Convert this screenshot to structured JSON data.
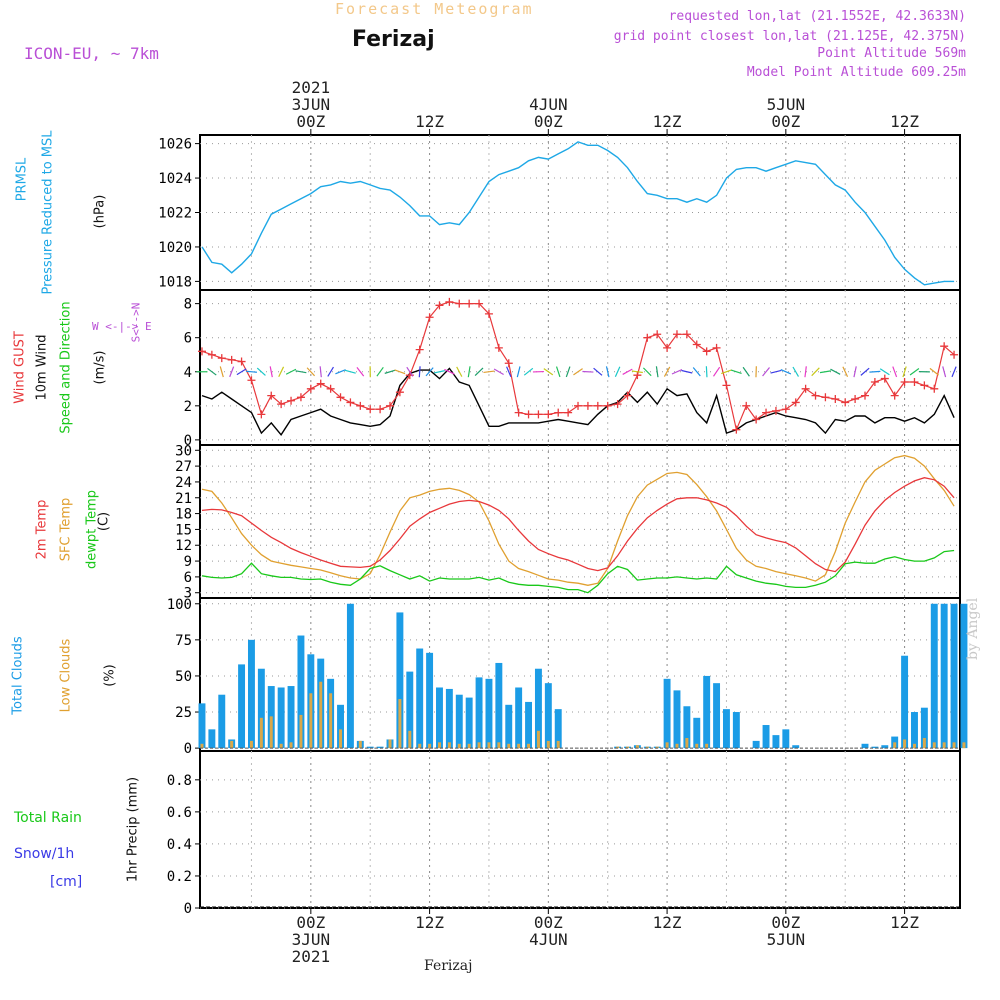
{
  "header": {
    "title": "Forecast Meteogram",
    "location": "Ferizaj",
    "model": "ICON-EU, ~ 7km",
    "requested": "requested lon,lat (21.1552E, 42.3633N)",
    "grid": "grid point closest lon,lat (21.125E, 42.375N)",
    "point_alt": "Point Altitude 569m",
    "model_alt": "Model Point Altitude 609.25m"
  },
  "footer_label": "Ferizaj",
  "byline": "by Angel",
  "axis_labels": {
    "p1": [
      "PRMSL",
      "Pressure Reduced to MSL",
      "(hPa)"
    ],
    "p2": [
      "Wind GUST",
      "10m Wind",
      "Speed and Direction",
      "(m/s)"
    ],
    "compass": [
      "N",
      "<-->",
      "S"
    ],
    "compass_we": "W <-|-> E",
    "p3": [
      "2m Temp",
      "SFC Temp",
      "dewpt Temp",
      "(C)"
    ],
    "p4": [
      "Total Clouds",
      "Low Clouds",
      "(%)"
    ],
    "p5_left": [
      "Total  Rain",
      "Snow/1h",
      "[cm]"
    ],
    "p5_axis": "1hr Precip (mm)"
  },
  "time_axis": {
    "top_major": [
      {
        "hour": 24,
        "lines": [
          "2021",
          "3JUN",
          "00Z"
        ]
      },
      {
        "hour": 36,
        "lines": [
          "12Z"
        ]
      },
      {
        "hour": 48,
        "lines": [
          "4JUN",
          "00Z"
        ]
      },
      {
        "hour": 60,
        "lines": [
          "12Z"
        ]
      },
      {
        "hour": 72,
        "lines": [
          "5JUN",
          "00Z"
        ]
      },
      {
        "hour": 84,
        "lines": [
          "12Z"
        ]
      }
    ],
    "bottom_major": [
      {
        "hour": 24,
        "lines": [
          "00Z",
          "3JUN",
          "2021"
        ]
      },
      {
        "hour": 36,
        "lines": [
          "12Z"
        ]
      },
      {
        "hour": 48,
        "lines": [
          "00Z",
          "4JUN"
        ]
      },
      {
        "hour": 60,
        "lines": [
          "12Z"
        ]
      },
      {
        "hour": 72,
        "lines": [
          "00Z",
          "5JUN"
        ]
      },
      {
        "hour": 84,
        "lines": [
          "12Z"
        ]
      }
    ]
  },
  "colors": {
    "pressure": "#1ea8e6",
    "gust": "#e8383b",
    "wind": "#000000",
    "temp2m": "#e8383b",
    "sfctemp": "#e0a030",
    "dewpt": "#19c819",
    "total_clouds": "#1b9ce6",
    "low_clouds": "#d9a84a",
    "purple": "#b94fd6",
    "green_label": "#19c819",
    "blue_label": "#3a3ae6"
  },
  "chart_data": {
    "type": "line",
    "x_unit": "hours since 2021-06-02 00Z",
    "x_range": [
      12.8,
      89.6
    ],
    "pressure": {
      "ylim": [
        1017.5,
        1026.5
      ],
      "yticks": [
        1018,
        1020,
        1022,
        1024,
        1026
      ],
      "x": [
        13,
        14,
        15,
        16,
        17,
        18,
        19,
        20,
        21,
        22,
        23,
        24,
        25,
        26,
        27,
        28,
        29,
        30,
        31,
        32,
        33,
        34,
        35,
        36,
        37,
        38,
        39,
        40,
        41,
        42,
        43,
        44,
        45,
        46,
        47,
        48,
        49,
        50,
        51,
        52,
        53,
        54,
        55,
        56,
        57,
        58,
        59,
        60,
        61,
        62,
        63,
        64,
        65,
        66,
        67,
        68,
        69,
        70,
        71,
        72,
        73,
        74,
        75,
        76,
        77,
        78,
        79,
        80,
        81,
        82,
        83,
        84,
        85,
        86,
        87,
        88,
        89
      ],
      "y": [
        1020.0,
        1019.1,
        1019.0,
        1018.5,
        1019.0,
        1019.6,
        1020.8,
        1021.9,
        1022.2,
        1022.5,
        1022.8,
        1023.1,
        1023.5,
        1023.6,
        1023.8,
        1023.7,
        1023.8,
        1023.6,
        1023.4,
        1023.3,
        1022.9,
        1022.4,
        1021.8,
        1021.8,
        1021.3,
        1021.4,
        1021.3,
        1022.0,
        1022.9,
        1023.8,
        1024.2,
        1024.4,
        1024.6,
        1025.0,
        1025.2,
        1025.1,
        1025.4,
        1025.7,
        1026.1,
        1025.9,
        1025.9,
        1025.6,
        1025.2,
        1024.6,
        1023.8,
        1023.1,
        1023.0,
        1022.8,
        1022.8,
        1022.6,
        1022.8,
        1022.6,
        1023.0,
        1024.0,
        1024.5,
        1024.6,
        1024.6,
        1024.4,
        1024.6,
        1024.8,
        1025.0,
        1024.9,
        1024.8,
        1024.2,
        1023.6,
        1023.3,
        1022.6,
        1022.0,
        1021.2,
        1020.4,
        1019.4,
        1018.7,
        1018.2,
        1017.8,
        1017.9,
        1018.0,
        1018.0
      ]
    },
    "wind": {
      "ylim": [
        -0.3,
        8.8
      ],
      "yticks": [
        0,
        2,
        4,
        6,
        8
      ],
      "x": [
        13,
        14,
        15,
        16,
        17,
        18,
        19,
        20,
        21,
        22,
        23,
        24,
        25,
        26,
        27,
        28,
        29,
        30,
        31,
        32,
        33,
        34,
        35,
        36,
        37,
        38,
        39,
        40,
        41,
        42,
        43,
        44,
        45,
        46,
        47,
        48,
        49,
        50,
        51,
        52,
        53,
        54,
        55,
        56,
        57,
        58,
        59,
        60,
        61,
        62,
        63,
        64,
        65,
        66,
        67,
        68,
        69,
        70,
        71,
        72,
        73,
        74,
        75,
        76,
        77,
        78,
        79,
        80,
        81,
        82,
        83,
        84,
        85,
        86,
        87,
        88,
        89
      ],
      "gust": [
        5.2,
        5.0,
        4.8,
        4.7,
        4.6,
        3.5,
        1.5,
        2.6,
        2.1,
        2.3,
        2.5,
        3.0,
        3.3,
        3.0,
        2.5,
        2.2,
        2.0,
        1.8,
        1.8,
        2.0,
        2.8,
        3.8,
        5.3,
        7.2,
        7.9,
        8.1,
        8.0,
        8.0,
        8.0,
        7.4,
        5.4,
        4.5,
        1.6,
        1.5,
        1.5,
        1.5,
        1.6,
        1.6,
        2.0,
        2.0,
        2.0,
        2.0,
        2.1,
        2.6,
        3.8,
        6.0,
        6.2,
        5.4,
        6.2,
        6.2,
        5.6,
        5.2,
        5.4,
        3.2,
        0.6,
        2.0,
        1.2,
        1.6,
        1.7,
        1.8,
        2.2,
        3.0,
        2.6,
        2.5,
        2.4,
        2.2,
        2.4,
        2.6,
        3.4,
        3.6,
        2.6,
        3.4,
        3.4,
        3.2,
        3.0,
        5.5,
        5.0
      ],
      "speed": [
        2.6,
        2.4,
        2.8,
        2.4,
        2.0,
        1.6,
        0.4,
        1.0,
        0.3,
        1.2,
        1.4,
        1.6,
        1.8,
        1.4,
        1.2,
        1.0,
        0.9,
        0.8,
        0.9,
        1.4,
        3.2,
        3.9,
        4.1,
        4.1,
        3.6,
        4.2,
        3.4,
        3.2,
        2.0,
        0.8,
        0.8,
        1.0,
        1.0,
        1.0,
        1.0,
        1.1,
        1.2,
        1.1,
        1.0,
        0.9,
        1.5,
        2.0,
        2.2,
        2.8,
        2.2,
        2.8,
        2.1,
        3.0,
        2.6,
        2.7,
        1.6,
        1.0,
        2.6,
        0.4,
        0.6,
        1.0,
        1.2,
        1.4,
        1.6,
        1.4,
        1.3,
        1.2,
        1.0,
        0.4,
        1.2,
        1.1,
        1.4,
        1.4,
        1.0,
        1.3,
        1.3,
        1.1,
        1.3,
        1.0,
        1.5,
        2.6,
        1.3
      ],
      "arrow_shaft": [
        1,
        -1
      ],
      "arrow_colors": [
        "#22c05a",
        "#1ea06a",
        "#e0a030",
        "#b94fd6",
        "#3a3ae6",
        "#1e90e6",
        "#19c8c8",
        "#e83ac8",
        "#c8c819"
      ]
    },
    "temperature": {
      "ylim": [
        2,
        31
      ],
      "yticks": [
        3,
        6,
        9,
        12,
        15,
        18,
        21,
        24,
        27,
        30
      ],
      "x": [
        13,
        14,
        15,
        16,
        17,
        18,
        19,
        20,
        21,
        22,
        23,
        24,
        25,
        26,
        27,
        28,
        29,
        30,
        31,
        32,
        33,
        34,
        35,
        36,
        37,
        38,
        39,
        40,
        41,
        42,
        43,
        44,
        45,
        46,
        47,
        48,
        49,
        50,
        51,
        52,
        53,
        54,
        55,
        56,
        57,
        58,
        59,
        60,
        61,
        62,
        63,
        64,
        65,
        66,
        67,
        68,
        69,
        70,
        71,
        72,
        73,
        74,
        75,
        76,
        77,
        78,
        79,
        80,
        81,
        82,
        83,
        84,
        85,
        86,
        87,
        88,
        89
      ],
      "temp2m": [
        18.6,
        18.8,
        18.7,
        18.2,
        17.6,
        16.2,
        14.8,
        13.5,
        12.5,
        11.4,
        10.6,
        9.9,
        9.2,
        8.6,
        8.0,
        7.9,
        7.8,
        8.0,
        9.2,
        11.0,
        13.2,
        15.6,
        17.0,
        18.2,
        19.0,
        19.8,
        20.3,
        20.5,
        20.3,
        19.6,
        18.6,
        17.0,
        14.8,
        12.8,
        11.2,
        10.4,
        9.7,
        9.2,
        8.4,
        7.6,
        7.2,
        7.7,
        10.0,
        12.8,
        15.2,
        17.2,
        18.6,
        19.8,
        20.8,
        21.0,
        21.0,
        20.6,
        20.0,
        19.2,
        17.6,
        15.6,
        14.0,
        13.4,
        12.9,
        12.5,
        11.5,
        10.0,
        8.5,
        7.4,
        7.0,
        8.8,
        12.2,
        15.8,
        18.5,
        20.5,
        22.0,
        23.2,
        24.2,
        24.8,
        24.4,
        23.2,
        21.0
      ],
      "sfctemp": [
        22.6,
        22.2,
        20.0,
        17.2,
        14.2,
        12.0,
        10.2,
        9.0,
        8.6,
        8.2,
        7.9,
        7.6,
        7.3,
        6.8,
        6.2,
        5.8,
        5.6,
        6.6,
        10.2,
        14.5,
        18.5,
        21.0,
        21.5,
        22.2,
        22.6,
        22.8,
        22.4,
        21.6,
        20.2,
        16.6,
        12.2,
        9.0,
        7.6,
        7.0,
        6.3,
        5.6,
        5.4,
        5.0,
        4.8,
        4.4,
        4.8,
        7.6,
        12.8,
        17.6,
        21.2,
        23.4,
        24.5,
        25.6,
        25.8,
        25.4,
        23.5,
        21.2,
        18.5,
        15.0,
        11.4,
        9.2,
        8.0,
        7.6,
        7.0,
        6.6,
        6.2,
        5.8,
        5.2,
        6.4,
        10.8,
        16.2,
        20.2,
        24.0,
        26.2,
        27.4,
        28.6,
        29.0,
        28.5,
        27.0,
        24.6,
        22.4,
        19.4
      ],
      "dewpt": [
        6.2,
        5.9,
        5.8,
        5.9,
        6.6,
        8.6,
        6.6,
        6.2,
        5.9,
        5.9,
        5.6,
        5.5,
        5.6,
        5.0,
        4.6,
        4.4,
        5.6,
        7.6,
        8.1,
        7.2,
        6.4,
        5.6,
        6.2,
        5.2,
        5.8,
        5.6,
        5.6,
        5.6,
        5.9,
        5.4,
        5.8,
        5.0,
        4.6,
        4.4,
        4.4,
        4.2,
        4.0,
        3.6,
        3.6,
        3.0,
        4.4,
        6.6,
        8.0,
        7.4,
        5.4,
        5.6,
        5.8,
        5.8,
        6.0,
        5.8,
        5.6,
        5.8,
        5.6,
        8.0,
        6.4,
        5.8,
        5.2,
        4.8,
        4.6,
        4.2,
        4.0,
        4.0,
        4.4,
        5.0,
        6.2,
        8.5,
        8.8,
        8.6,
        8.6,
        9.4,
        9.8,
        9.3,
        9.0,
        9.0,
        9.6,
        10.8,
        11.0
      ]
    },
    "clouds": {
      "type": "bar",
      "ylim": [
        -2,
        104
      ],
      "yticks": [
        0,
        25,
        50,
        75,
        100
      ],
      "x_start": 13,
      "x_step": 1,
      "total": [
        31,
        13,
        37,
        6,
        58,
        75,
        55,
        43,
        42,
        43,
        78,
        65,
        62,
        48,
        30,
        100,
        5,
        1,
        1,
        6,
        94,
        53,
        69,
        66,
        42,
        41,
        37,
        35,
        49,
        48,
        59,
        30,
        42,
        32,
        55,
        45,
        27,
        0,
        0,
        0,
        0,
        0,
        1,
        1,
        2,
        1,
        1,
        48,
        40,
        29,
        21,
        50,
        45,
        27,
        25,
        0,
        5,
        16,
        9,
        13,
        2,
        0,
        0,
        0,
        0,
        0,
        0,
        3,
        1,
        2,
        8,
        64,
        25,
        28,
        100,
        100,
        100,
        100
      ],
      "low": [
        3,
        0,
        0,
        5,
        0,
        5,
        21,
        22,
        3,
        4,
        23,
        38,
        46,
        38,
        13,
        0,
        5,
        0,
        0,
        6,
        34,
        12,
        3,
        3,
        4,
        4,
        3,
        3,
        4,
        4,
        4,
        3,
        3,
        3,
        12,
        5,
        5,
        0,
        0,
        0,
        0,
        0,
        1,
        1,
        2,
        1,
        1,
        4,
        3,
        7,
        3,
        3,
        0,
        0,
        0,
        0,
        0,
        0,
        0,
        0,
        0,
        0,
        0,
        0,
        0,
        0,
        0,
        0,
        0,
        0,
        4,
        6,
        3,
        7,
        4,
        4,
        4,
        4
      ]
    },
    "precip": {
      "type": "bar",
      "ylim": [
        0,
        0.98
      ],
      "yticks": [
        0,
        0.2,
        0.4,
        0.6,
        0.8
      ],
      "values": []
    }
  }
}
